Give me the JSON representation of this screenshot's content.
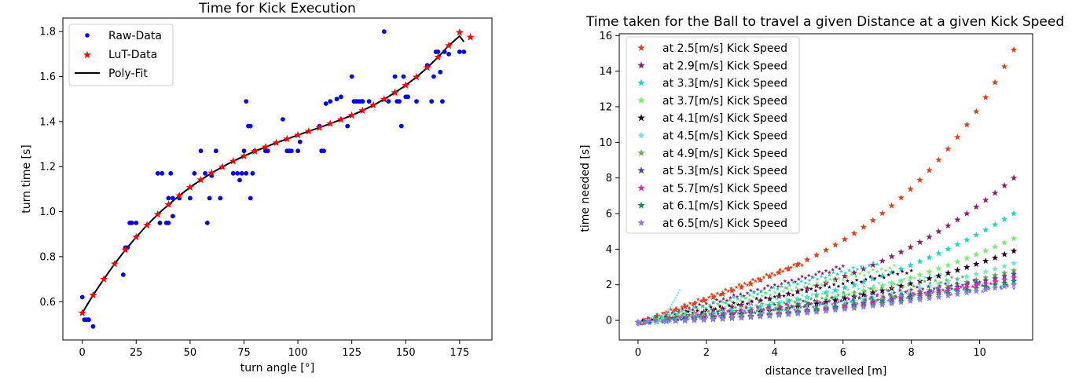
{
  "chart_data": [
    {
      "type": "scatter",
      "title": "Time for Kick Execution",
      "xlabel": "turn angle [°]",
      "ylabel": "turn time [s]",
      "xlim": [
        -9,
        190
      ],
      "ylim": [
        0.43,
        1.86
      ],
      "xticks": [
        "0",
        "25",
        "50",
        "75",
        "100",
        "125",
        "150",
        "175"
      ],
      "xtick_values": [
        0,
        25,
        50,
        75,
        100,
        125,
        150,
        175
      ],
      "yticks": [
        "0.6",
        "0.8",
        "1.0",
        "1.2",
        "1.4",
        "1.6",
        "1.8"
      ],
      "ytick_values": [
        0.6,
        0.8,
        1.0,
        1.2,
        1.4,
        1.6,
        1.8
      ],
      "legend_position": "top-left",
      "series": [
        {
          "name": "Raw-Data",
          "kind": "dots",
          "color": "#0000ff",
          "points": [
            [
              0,
              0.62
            ],
            [
              1,
              0.52
            ],
            [
              2,
              0.52
            ],
            [
              3,
              0.52
            ],
            [
              5,
              0.49
            ],
            [
              19,
              0.72
            ],
            [
              20,
              0.84
            ],
            [
              21,
              0.84
            ],
            [
              22,
              0.95
            ],
            [
              23,
              0.95
            ],
            [
              25,
              0.95
            ],
            [
              35,
              1.17
            ],
            [
              36,
              0.95
            ],
            [
              37,
              1.17
            ],
            [
              39,
              0.95
            ],
            [
              40,
              1.06
            ],
            [
              40,
              0.95
            ],
            [
              41,
              1.17
            ],
            [
              42,
              0.98
            ],
            [
              42,
              1.06
            ],
            [
              45,
              1.06
            ],
            [
              50,
              1.06
            ],
            [
              52,
              1.17
            ],
            [
              55,
              1.27
            ],
            [
              57,
              1.17
            ],
            [
              58,
              0.95
            ],
            [
              59,
              1.06
            ],
            [
              60,
              1.16
            ],
            [
              62,
              1.27
            ],
            [
              64,
              1.06
            ],
            [
              70,
              1.17
            ],
            [
              72,
              1.17
            ],
            [
              73,
              1.14
            ],
            [
              74,
              1.17
            ],
            [
              75,
              1.27
            ],
            [
              76,
              1.49
            ],
            [
              76,
              1.17
            ],
            [
              77,
              1.38
            ],
            [
              78,
              1.38
            ],
            [
              78,
              1.06
            ],
            [
              79,
              1.17
            ],
            [
              80,
              1.27
            ],
            [
              85,
              1.27
            ],
            [
              86,
              1.27
            ],
            [
              93,
              1.41
            ],
            [
              95,
              1.27
            ],
            [
              96,
              1.27
            ],
            [
              97,
              1.27
            ],
            [
              100,
              1.27
            ],
            [
              101,
              1.31
            ],
            [
              110,
              1.38
            ],
            [
              111,
              1.27
            ],
            [
              112,
              1.27
            ],
            [
              113,
              1.48
            ],
            [
              115,
              1.49
            ],
            [
              118,
              1.5
            ],
            [
              120,
              1.51
            ],
            [
              123,
              1.38
            ],
            [
              125,
              1.6
            ],
            [
              126,
              1.49
            ],
            [
              127,
              1.49
            ],
            [
              128,
              1.49
            ],
            [
              129,
              1.49
            ],
            [
              130,
              1.49
            ],
            [
              133,
              1.49
            ],
            [
              140,
              1.8
            ],
            [
              142,
              1.49
            ],
            [
              145,
              1.6
            ],
            [
              146,
              1.49
            ],
            [
              147,
              1.49
            ],
            [
              148,
              1.38
            ],
            [
              149,
              1.6
            ],
            [
              150,
              1.51
            ],
            [
              151,
              1.51
            ],
            [
              155,
              1.49
            ],
            [
              160,
              1.65
            ],
            [
              162,
              1.49
            ],
            [
              163,
              1.6
            ],
            [
              164,
              1.71
            ],
            [
              165,
              1.71
            ],
            [
              166,
              1.62
            ],
            [
              167,
              1.49
            ],
            [
              168,
              1.71
            ],
            [
              170,
              1.7
            ],
            [
              175,
              1.71
            ],
            [
              177,
              1.71
            ]
          ]
        },
        {
          "name": "LuT-Data",
          "kind": "stars",
          "color": "#ff0000",
          "points": [
            [
              0,
              0.55
            ],
            [
              5,
              0.629
            ],
            [
              10,
              0.7
            ],
            [
              15,
              0.768
            ],
            [
              20,
              0.83
            ],
            [
              25,
              0.887
            ],
            [
              30,
              0.94
            ],
            [
              35,
              0.988
            ],
            [
              40,
              1.031
            ],
            [
              45,
              1.071
            ],
            [
              50,
              1.108
            ],
            [
              55,
              1.141
            ],
            [
              60,
              1.172
            ],
            [
              65,
              1.199
            ],
            [
              70,
              1.224
            ],
            [
              75,
              1.247
            ],
            [
              80,
              1.268
            ],
            [
              85,
              1.287
            ],
            [
              90,
              1.306
            ],
            [
              95,
              1.323
            ],
            [
              100,
              1.34
            ],
            [
              105,
              1.357
            ],
            [
              110,
              1.373
            ],
            [
              115,
              1.391
            ],
            [
              120,
              1.409
            ],
            [
              125,
              1.428
            ],
            [
              130,
              1.449
            ],
            [
              135,
              1.473
            ],
            [
              140,
              1.499
            ],
            [
              145,
              1.529
            ],
            [
              150,
              1.561
            ],
            [
              155,
              1.598
            ],
            [
              160,
              1.64
            ],
            [
              165,
              1.686
            ],
            [
              170,
              1.738
            ],
            [
              175,
              1.796
            ],
            [
              180,
              1.775
            ]
          ]
        },
        {
          "name": "Poly-Fit",
          "kind": "line",
          "color": "#000000",
          "points": [
            [
              0,
              0.55
            ],
            [
              5,
              0.629
            ],
            [
              10,
              0.7
            ],
            [
              15,
              0.768
            ],
            [
              20,
              0.83
            ],
            [
              25,
              0.887
            ],
            [
              30,
              0.94
            ],
            [
              35,
              0.988
            ],
            [
              40,
              1.031
            ],
            [
              45,
              1.071
            ],
            [
              50,
              1.108
            ],
            [
              55,
              1.141
            ],
            [
              60,
              1.172
            ],
            [
              65,
              1.199
            ],
            [
              70,
              1.224
            ],
            [
              75,
              1.247
            ],
            [
              80,
              1.268
            ],
            [
              85,
              1.287
            ],
            [
              90,
              1.306
            ],
            [
              95,
              1.323
            ],
            [
              100,
              1.34
            ],
            [
              105,
              1.357
            ],
            [
              110,
              1.373
            ],
            [
              115,
              1.391
            ],
            [
              120,
              1.409
            ],
            [
              125,
              1.428
            ],
            [
              130,
              1.449
            ],
            [
              135,
              1.473
            ],
            [
              140,
              1.499
            ],
            [
              145,
              1.529
            ],
            [
              150,
              1.561
            ],
            [
              155,
              1.598
            ],
            [
              160,
              1.64
            ],
            [
              165,
              1.686
            ],
            [
              170,
              1.738
            ],
            [
              175,
              1.78
            ],
            [
              177,
              1.755
            ]
          ]
        }
      ]
    },
    {
      "type": "scatter",
      "title": "Time taken for the Ball to travel a given Distance at a given Kick Speed",
      "xlabel": "distance travelled [m]",
      "ylabel": "time needed [s]",
      "xlim": [
        -0.55,
        11.55
      ],
      "ylim": [
        -1.1,
        16.1
      ],
      "xticks": [
        "0",
        "2",
        "4",
        "6",
        "8",
        "10"
      ],
      "xtick_values": [
        0,
        2,
        4,
        6,
        8,
        10
      ],
      "yticks": [
        "0",
        "2",
        "4",
        "6",
        "8",
        "10",
        "12",
        "14",
        "16"
      ],
      "ytick_values": [
        0,
        2,
        4,
        6,
        8,
        10,
        12,
        14,
        16
      ],
      "legend_position": "top-left",
      "series": [
        {
          "name": "at 2.5[m/s] Kick Speed",
          "color": "#e0401a",
          "end_y": 15.2,
          "exponent": 2.8,
          "linear": 0.45,
          "cluster_end_x": 4.8,
          "cluster_end_y": 3.2
        },
        {
          "name": "at 2.9[m/s] Kick Speed",
          "color": "#8e1f66",
          "end_y": 8.0,
          "exponent": 1.9,
          "linear": 0.38,
          "cluster_end_x": 6.0,
          "cluster_end_y": 3.0
        },
        {
          "name": "at 3.3[m/s] Kick Speed",
          "color": "#1fd6c4",
          "end_y": 6.0,
          "exponent": 1.7,
          "linear": 0.34,
          "cluster_end_x": 7.0,
          "cluster_end_y": 3.2
        },
        {
          "name": "at 3.7[m/s] Kick Speed",
          "color": "#77ee6a",
          "end_y": 4.6,
          "exponent": 1.5,
          "linear": 0.3,
          "cluster_end_x": 7.5,
          "cluster_end_y": 3.0
        },
        {
          "name": "at 4.1[m/s] Kick Speed",
          "color": "#2a0020",
          "end_y": 3.9,
          "exponent": 1.35,
          "linear": 0.28,
          "cluster_end_x": 8.0,
          "cluster_end_y": 2.8
        },
        {
          "name": "at 4.5[m/s] Kick Speed",
          "color": "#73e6d2",
          "end_y": 3.2,
          "exponent": 1.25,
          "linear": 0.25,
          "cluster_end_x": 9.0,
          "cluster_end_y": 2.6
        },
        {
          "name": "at 4.9[m/s] Kick Speed",
          "color": "#6ab04c",
          "end_y": 2.8,
          "exponent": 1.2,
          "linear": 0.23,
          "cluster_end_x": 9.5,
          "cluster_end_y": 2.4
        },
        {
          "name": "at 5.3[m/s] Kick Speed",
          "color": "#4a4a9a",
          "end_y": 2.6,
          "exponent": 1.15,
          "linear": 0.21,
          "cluster_end_x": 10.0,
          "cluster_end_y": 2.2
        },
        {
          "name": "at 5.7[m/s] Kick Speed",
          "color": "#ee22bb",
          "end_y": 2.4,
          "exponent": 1.1,
          "linear": 0.2,
          "cluster_end_x": 10.5,
          "cluster_end_y": 2.1
        },
        {
          "name": "at 6.1[m/s] Kick Speed",
          "color": "#1a8a50",
          "end_y": 2.2,
          "exponent": 1.05,
          "linear": 0.19,
          "cluster_end_x": 10.8,
          "cluster_end_y": 2.0
        },
        {
          "name": "at 6.5[m/s] Kick Speed",
          "color": "#8a7af0",
          "end_y": 2.0,
          "exponent": 1.0,
          "linear": 0.18,
          "cluster_end_x": 11.0,
          "cluster_end_y": 1.9
        }
      ]
    }
  ]
}
